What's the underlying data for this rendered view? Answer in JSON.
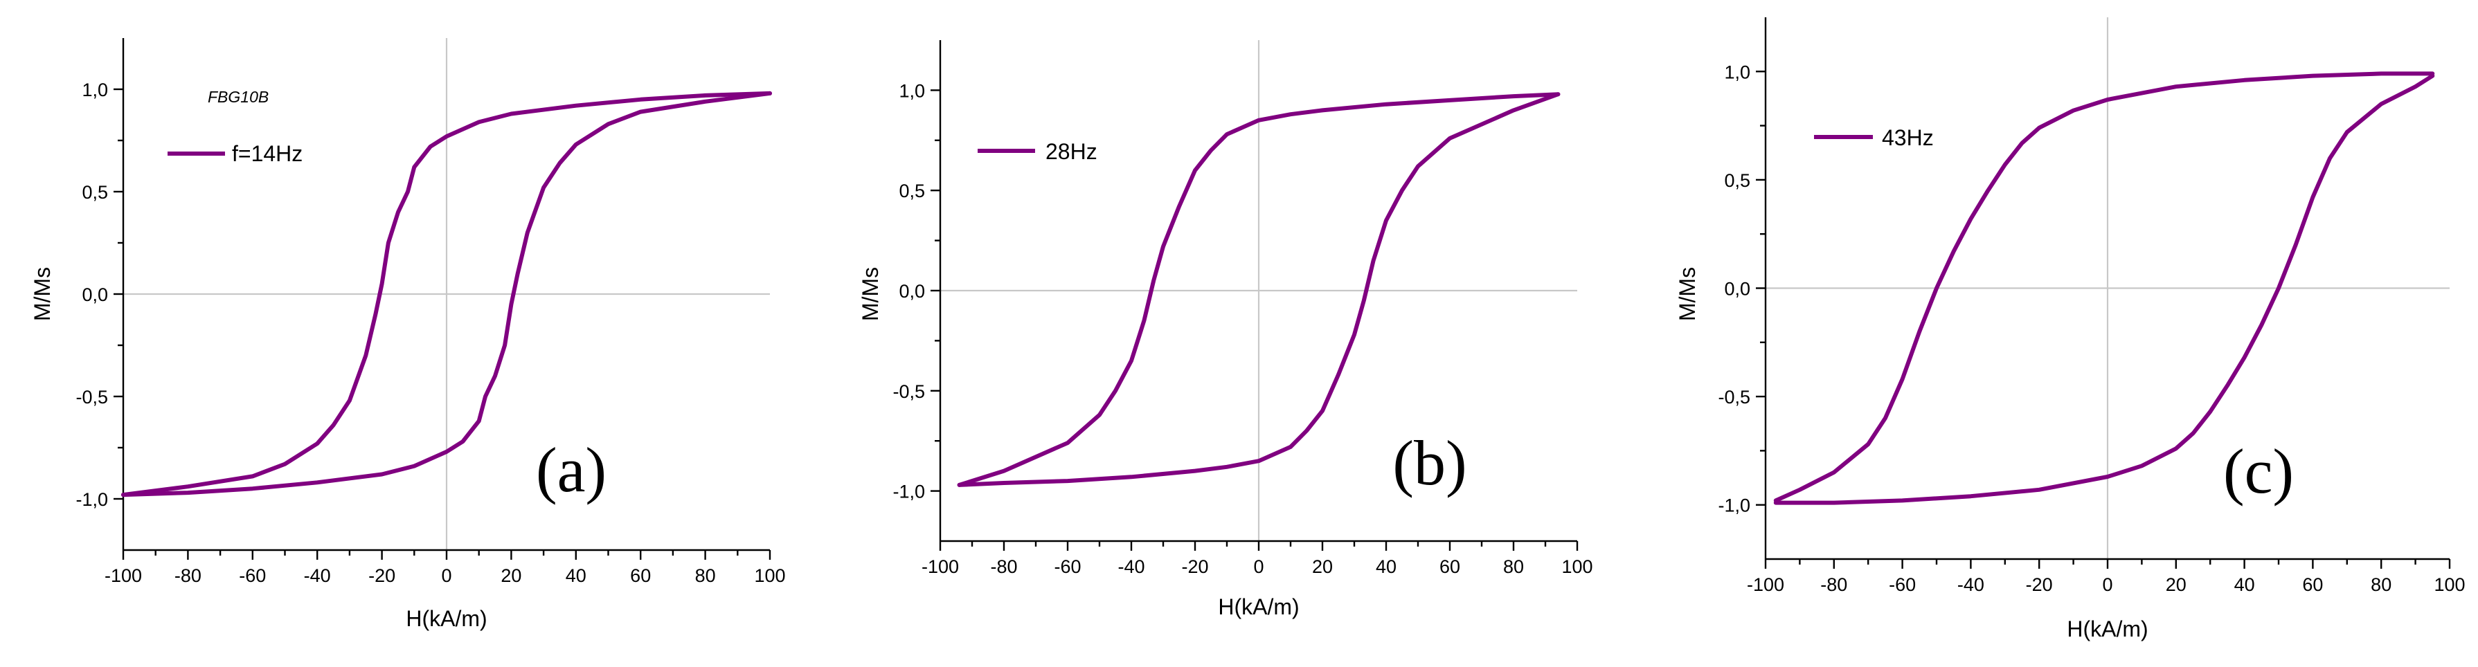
{
  "chart_data": [
    {
      "type": "line",
      "panel_label": "(a)",
      "sample_label": "FBG10B",
      "xlabel": "H(kA/m)",
      "ylabel": "M/Ms",
      "xlim": [
        -100,
        100
      ],
      "ylim": [
        -1.25,
        1.25
      ],
      "x_ticks": [
        "-100",
        "-80",
        "-60",
        "-40",
        "-20",
        "0",
        "20",
        "40",
        "60",
        "80",
        "100"
      ],
      "y_ticks": [
        "-1,0",
        "-0,5",
        "0,0",
        "0,5",
        "1,0"
      ],
      "legend_position": "top-left",
      "series": [
        {
          "name": "f=14Hz",
          "color": "#800080",
          "descending_branch": {
            "x": [
              100,
              80,
              60,
              40,
              20,
              10,
              0,
              -5,
              -10,
              -12,
              -15,
              -18,
              -20,
              -22,
              -25,
              -30,
              -35,
              -40,
              -50,
              -60,
              -80,
              -100
            ],
            "y": [
              0.98,
              0.97,
              0.95,
              0.92,
              0.88,
              0.84,
              0.77,
              0.72,
              0.62,
              0.5,
              0.4,
              0.25,
              0.05,
              -0.1,
              -0.3,
              -0.52,
              -0.64,
              -0.73,
              -0.83,
              -0.89,
              -0.94,
              -0.98
            ]
          },
          "ascending_branch": {
            "x": [
              -100,
              -80,
              -60,
              -40,
              -20,
              -10,
              0,
              5,
              10,
              12,
              15,
              18,
              20,
              22,
              25,
              30,
              35,
              40,
              50,
              60,
              80,
              100
            ],
            "y": [
              -0.98,
              -0.97,
              -0.95,
              -0.92,
              -0.88,
              -0.84,
              -0.77,
              -0.72,
              -0.62,
              -0.5,
              -0.4,
              -0.25,
              -0.05,
              0.1,
              0.3,
              0.52,
              0.64,
              0.73,
              0.83,
              0.89,
              0.94,
              0.98
            ]
          }
        }
      ]
    },
    {
      "type": "line",
      "panel_label": "(b)",
      "xlabel": "H(kA/m)",
      "ylabel": "M/Ms",
      "xlim": [
        -100,
        100
      ],
      "ylim": [
        -1.25,
        1.25
      ],
      "x_ticks": [
        "-100",
        "-80",
        "-60",
        "-40",
        "-20",
        "0",
        "20",
        "40",
        "60",
        "80",
        "100"
      ],
      "y_ticks": [
        "-1,0",
        "-0,5",
        "0,0",
        "0,5",
        "1,0"
      ],
      "legend_position": "top-left",
      "series": [
        {
          "name": "28Hz",
          "color": "#800080",
          "descending_branch": {
            "x": [
              94,
              80,
              60,
              40,
              20,
              10,
              0,
              -10,
              -15,
              -20,
              -25,
              -30,
              -33,
              -36,
              -40,
              -45,
              -50,
              -60,
              -80,
              -94
            ],
            "y": [
              0.98,
              0.97,
              0.95,
              0.93,
              0.9,
              0.88,
              0.85,
              0.78,
              0.7,
              0.6,
              0.42,
              0.22,
              0.05,
              -0.15,
              -0.35,
              -0.5,
              -0.62,
              -0.76,
              -0.9,
              -0.97
            ]
          },
          "ascending_branch": {
            "x": [
              -94,
              -80,
              -60,
              -40,
              -20,
              -10,
              0,
              10,
              15,
              20,
              25,
              30,
              33,
              36,
              40,
              45,
              50,
              60,
              80,
              94
            ],
            "y": [
              -0.97,
              -0.96,
              -0.95,
              -0.93,
              -0.9,
              -0.88,
              -0.85,
              -0.78,
              -0.7,
              -0.6,
              -0.42,
              -0.22,
              -0.05,
              0.15,
              0.35,
              0.5,
              0.62,
              0.76,
              0.9,
              0.98
            ]
          }
        }
      ]
    },
    {
      "type": "line",
      "panel_label": "(c)",
      "xlabel": "H(kA/m)",
      "ylabel": "M/Ms",
      "xlim": [
        -100,
        100
      ],
      "ylim": [
        -1.25,
        1.25
      ],
      "x_ticks": [
        "-100",
        "-80",
        "-60",
        "-40",
        "-20",
        "0",
        "20",
        "40",
        "60",
        "80",
        "100"
      ],
      "y_ticks": [
        "-1,0",
        "-0,5",
        "0,0",
        "0,5",
        "1,0"
      ],
      "legend_position": "top-left",
      "series": [
        {
          "name": "43Hz",
          "color": "#800080",
          "descending_branch": {
            "x": [
              95,
              80,
              60,
              40,
              20,
              0,
              -10,
              -20,
              -25,
              -30,
              -35,
              -40,
              -45,
              -50,
              -55,
              -60,
              -65,
              -70,
              -80,
              -90,
              -97
            ],
            "y": [
              0.99,
              0.99,
              0.98,
              0.96,
              0.93,
              0.87,
              0.82,
              0.74,
              0.67,
              0.57,
              0.45,
              0.32,
              0.17,
              0.0,
              -0.2,
              -0.42,
              -0.6,
              -0.72,
              -0.85,
              -0.93,
              -0.98
            ]
          },
          "ascending_branch": {
            "x": [
              -97,
              -80,
              -60,
              -40,
              -20,
              0,
              10,
              20,
              25,
              30,
              35,
              40,
              45,
              50,
              55,
              60,
              65,
              70,
              80,
              90,
              95
            ],
            "y": [
              -0.99,
              -0.99,
              -0.98,
              -0.96,
              -0.93,
              -0.87,
              -0.82,
              -0.74,
              -0.67,
              -0.57,
              -0.45,
              -0.32,
              -0.17,
              0.0,
              0.2,
              0.42,
              0.6,
              0.72,
              0.85,
              0.93,
              0.98
            ]
          }
        }
      ]
    }
  ]
}
